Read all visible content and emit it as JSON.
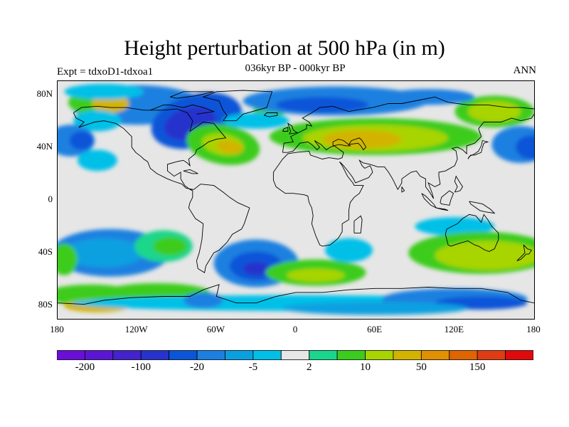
{
  "header": {
    "title": "Height perturbation at 500 hPa (in m)",
    "subtitle": "036kyr BP - 000kyr BP",
    "experiment": "Expt = tdxoD1-tdxoa1",
    "season": "ANN"
  },
  "map": {
    "lat_labels": [
      "80N",
      "40N",
      "0",
      "40S",
      "80S"
    ],
    "lon_labels": [
      "180",
      "120W",
      "60W",
      "0",
      "60E",
      "120E",
      "180"
    ],
    "lat_values": [
      80,
      40,
      0,
      -40,
      -80
    ],
    "lon_values": [
      -180,
      -120,
      -60,
      0,
      60,
      120,
      180
    ]
  },
  "colorbar": {
    "colors": [
      "#6a0fd8",
      "#5b16d4",
      "#4323cc",
      "#2832cc",
      "#0a55d8",
      "#1c80e0",
      "#0aa0e0",
      "#00c0e8",
      "#e6e6e6",
      "#1ad68c",
      "#3ccc1e",
      "#a8d400",
      "#d2b400",
      "#e09000",
      "#e06400",
      "#e03c14",
      "#e00a0a"
    ],
    "labels": [
      "-200",
      "-100",
      "-20",
      "-5",
      "2",
      "10",
      "50",
      "150"
    ]
  },
  "field_colors": {
    "neutral": "#e6e6e6",
    "green": "#3ccc1e",
    "teal": "#1ad68c",
    "yellowgreen": "#a8d400",
    "yellow": "#d2b400",
    "cyan": "#00c0e8",
    "lightblue": "#0aa0e0",
    "blue": "#1c80e0",
    "darkblue": "#0a55d8",
    "navy": "#2832cc"
  }
}
